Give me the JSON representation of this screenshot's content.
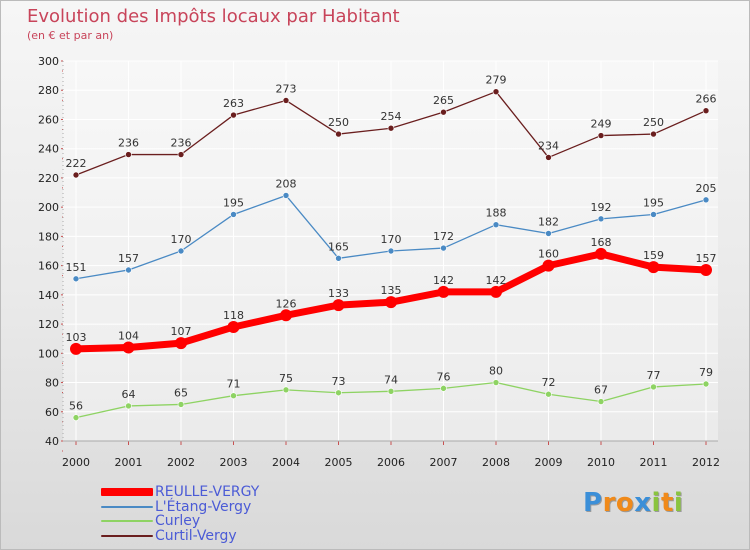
{
  "header": {
    "title": "Evolution des Impôts locaux par Habitant",
    "subtitle": "(en € et par an)"
  },
  "chart_data": {
    "type": "line",
    "title": "Evolution des Impôts locaux par Habitant",
    "subtitle": "(en € et par an)",
    "xlabel": "",
    "ylabel": "",
    "x": [
      2000,
      2001,
      2002,
      2003,
      2004,
      2005,
      2006,
      2007,
      2008,
      2009,
      2010,
      2011,
      2012
    ],
    "ylim": [
      40,
      300
    ],
    "yticks": [
      40,
      60,
      80,
      100,
      120,
      140,
      160,
      180,
      200,
      220,
      240,
      260,
      280,
      300
    ],
    "grid": true,
    "legend_position": "bottom-left",
    "series": [
      {
        "name": "REULLE-VERGY",
        "color": "#ff0000",
        "emphasis": true,
        "values": [
          103,
          104,
          107,
          118,
          126,
          133,
          135,
          142,
          142,
          160,
          168,
          159,
          157
        ]
      },
      {
        "name": "L'Étang-Vergy",
        "color": "#4a8ac4",
        "emphasis": false,
        "values": [
          151,
          157,
          170,
          195,
          208,
          165,
          170,
          172,
          188,
          182,
          192,
          195,
          205
        ]
      },
      {
        "name": "Curley",
        "color": "#8ed363",
        "emphasis": false,
        "values": [
          56,
          64,
          65,
          71,
          75,
          73,
          74,
          76,
          80,
          72,
          67,
          77,
          79
        ]
      },
      {
        "name": "Curtil-Vergy",
        "color": "#6a1e1e",
        "emphasis": false,
        "values": [
          222,
          236,
          236,
          263,
          273,
          250,
          254,
          265,
          279,
          234,
          249,
          250,
          266
        ]
      }
    ]
  },
  "logo": {
    "letters": [
      "P",
      "r",
      "o",
      "x",
      "i",
      "t",
      "i"
    ],
    "colors": [
      "#3b8fd8",
      "#f08a1a",
      "#f08a1a",
      "#3b8fd8",
      "#8ac43f",
      "#f08a1a",
      "#8ac43f"
    ]
  }
}
